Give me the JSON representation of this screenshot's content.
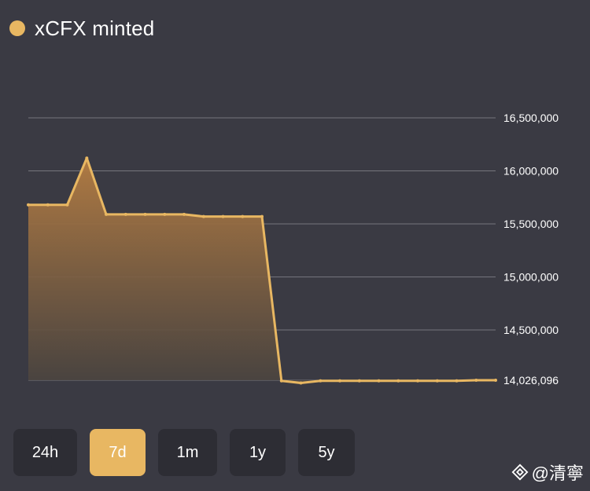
{
  "legend": {
    "label": "xCFX minted",
    "color": "#e8b762"
  },
  "chart_data": {
    "type": "area",
    "title": "xCFX minted",
    "series": [
      {
        "name": "xCFX minted",
        "values": [
          15680000,
          15680000,
          15680000,
          16120000,
          15590000,
          15590000,
          15590000,
          15590000,
          15590000,
          15570000,
          15570000,
          15570000,
          15570000,
          14020000,
          14000000,
          14020000,
          14020000,
          14020000,
          14020000,
          14020000,
          14020000,
          14020000,
          14020000,
          14026096,
          14026096
        ]
      }
    ],
    "yticks": [
      {
        "value": 16500000,
        "label": "16,500,000"
      },
      {
        "value": 16000000,
        "label": "16,000,000"
      },
      {
        "value": 15500000,
        "label": "15,500,000"
      },
      {
        "value": 15000000,
        "label": "15,000,000"
      },
      {
        "value": 14500000,
        "label": "14,500,000"
      },
      {
        "value": 14026096,
        "label": "14,026,096"
      }
    ],
    "grid": true,
    "colors": {
      "line": "#e8b762",
      "fill_top": "#b57d42",
      "fill_bottom": "#4a4440",
      "grid": "#75757d"
    }
  },
  "range_buttons": [
    {
      "label": "24h",
      "active": false
    },
    {
      "label": "7d",
      "active": true
    },
    {
      "label": "1m",
      "active": false
    },
    {
      "label": "1y",
      "active": false
    },
    {
      "label": "5y",
      "active": false
    }
  ],
  "watermark": {
    "text": "@清寧",
    "icon": "binance-diamond-icon"
  }
}
